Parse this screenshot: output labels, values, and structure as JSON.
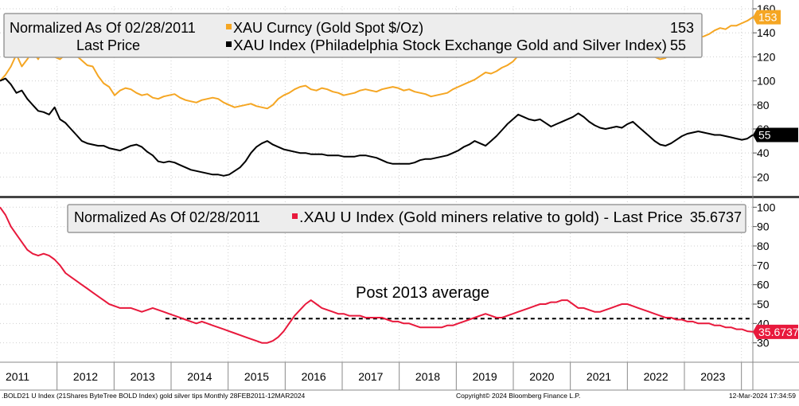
{
  "colors": {
    "gold": "#f5a623",
    "xau": "#000000",
    "ratio": "#e8193c",
    "avg": "#000000",
    "axis_text": "#000000",
    "legend_bg": "#ededed"
  },
  "footer": {
    "left": ".BOLD21 U Index (21Shares ByteTree BOLD Index) gold silver tips  Monthly 28FEB2011-12MAR2024",
    "center": "Copyright© 2024 Bloomberg Finance L.P.",
    "right": "12-Mar-2024 17:34:59"
  },
  "chart_data": [
    {
      "type": "line",
      "panel": "top",
      "ylim": [
        5,
        162
      ],
      "yticks": [
        20,
        40,
        60,
        80,
        100,
        120,
        140,
        160
      ],
      "x_start": 2011.0,
      "x_end": 2024.2,
      "legend": {
        "line1": "Normalized As Of 02/28/2011",
        "line2": "Last Price"
      },
      "series": [
        {
          "name": "XAU Curncy (Gold Spot   $/Oz)",
          "last_label": "153",
          "last_value": 153,
          "color_key": "gold",
          "values": [
            100,
            105,
            112,
            122,
            112,
            118,
            125,
            118,
            128,
            121,
            120,
            118,
            122,
            124,
            121,
            117,
            113,
            112,
            104,
            98,
            95,
            88,
            92,
            94,
            93,
            90,
            88,
            89,
            86,
            85,
            87,
            88,
            89,
            86,
            84,
            83,
            82,
            84,
            85,
            86,
            85,
            82,
            80,
            78,
            79,
            80,
            81,
            79,
            78,
            77,
            80,
            85,
            88,
            90,
            93,
            95,
            96,
            93,
            92,
            94,
            93,
            91,
            90,
            88,
            89,
            90,
            92,
            93,
            92,
            91,
            93,
            94,
            95,
            94,
            92,
            93,
            91,
            90,
            89,
            87,
            88,
            89,
            90,
            93,
            95,
            97,
            99,
            101,
            104,
            107,
            106,
            108,
            111,
            113,
            116,
            121,
            125,
            132,
            137,
            140,
            138,
            136,
            135,
            133,
            134,
            134,
            132,
            133,
            131,
            130,
            128,
            127,
            128,
            129,
            130,
            129,
            128,
            126,
            125,
            122,
            120,
            118,
            119,
            125,
            130,
            132,
            134,
            134,
            136,
            137,
            139,
            142,
            144,
            143,
            146,
            146,
            148,
            150,
            153
          ]
        },
        {
          "name": "XAU Index (Philadelphia Stock Exchange Gold and Silver Index)",
          "last_label": "55",
          "last_value": 55,
          "color_key": "xau",
          "values": [
            100,
            102,
            97,
            90,
            92,
            85,
            80,
            75,
            74,
            72,
            78,
            68,
            65,
            60,
            55,
            50,
            48,
            47,
            46,
            46,
            44,
            43,
            42,
            44,
            46,
            47,
            45,
            41,
            38,
            33,
            32,
            33,
            32,
            30,
            28,
            26,
            25,
            24,
            23,
            22,
            22,
            21,
            22,
            25,
            28,
            33,
            40,
            45,
            48,
            50,
            47,
            45,
            43,
            42,
            41,
            40,
            40,
            39,
            39,
            39,
            38,
            38,
            38,
            37,
            37,
            37,
            38,
            38,
            37,
            36,
            34,
            32,
            31,
            31,
            31,
            31,
            32,
            34,
            35,
            35,
            36,
            37,
            38,
            40,
            42,
            45,
            47,
            50,
            48,
            46,
            50,
            54,
            59,
            64,
            68,
            72,
            70,
            68,
            67,
            68,
            65,
            62,
            64,
            66,
            68,
            70,
            73,
            70,
            66,
            63,
            61,
            60,
            61,
            62,
            61,
            64,
            66,
            62,
            58,
            54,
            50,
            47,
            46,
            48,
            51,
            54,
            56,
            57,
            58,
            57,
            56,
            55,
            55,
            54,
            53,
            52,
            51,
            52,
            55
          ]
        }
      ]
    },
    {
      "type": "line",
      "panel": "bottom",
      "ylim": [
        20,
        103
      ],
      "yticks": [
        30,
        40,
        50,
        60,
        70,
        80,
        90,
        100
      ],
      "x_start": 2011.0,
      "x_end": 2024.2,
      "legend": {
        "line1": "Normalized As Of 02/28/2011"
      },
      "annotation": "Post 2013 average",
      "average": {
        "value": 42.5,
        "x_from": 2013.9
      },
      "series": [
        {
          "name": ".XAU U Index (Gold miners relative to gold) - Last Price",
          "last_label": "35.6737",
          "last_value": 35.6737,
          "color_key": "ratio",
          "values": [
            100,
            96,
            90,
            86,
            82,
            78,
            76,
            75,
            76,
            75,
            73,
            70,
            66,
            64,
            62,
            60,
            58,
            56,
            54,
            52,
            50,
            49,
            48,
            48,
            48,
            47,
            46,
            47,
            48,
            47,
            46,
            45,
            44,
            43,
            42,
            41,
            40,
            41,
            40,
            39,
            38,
            37,
            36,
            35,
            34,
            33,
            32,
            31,
            30,
            30,
            31,
            33,
            36,
            40,
            44,
            47,
            50,
            52,
            50,
            48,
            47,
            46,
            45,
            45,
            44,
            44,
            44,
            43,
            43,
            43,
            43,
            42,
            41,
            41,
            40,
            40,
            39,
            38,
            38,
            38,
            38,
            38,
            39,
            39,
            40,
            41,
            42,
            43,
            44,
            45,
            44,
            43,
            43,
            44,
            45,
            46,
            47,
            48,
            49,
            50,
            50,
            51,
            51,
            52,
            52,
            50,
            48,
            48,
            47,
            46,
            46,
            47,
            48,
            49,
            50,
            50,
            49,
            48,
            47,
            46,
            45,
            44,
            43,
            43,
            42,
            42,
            41,
            41,
            40,
            40,
            40,
            39,
            39,
            38,
            38,
            37,
            37,
            36,
            35.7
          ]
        }
      ]
    }
  ],
  "x_axis": {
    "years": [
      "2011",
      "2012",
      "2013",
      "2014",
      "2015",
      "2016",
      "2017",
      "2018",
      "2019",
      "2020",
      "2021",
      "2022",
      "2023"
    ]
  }
}
